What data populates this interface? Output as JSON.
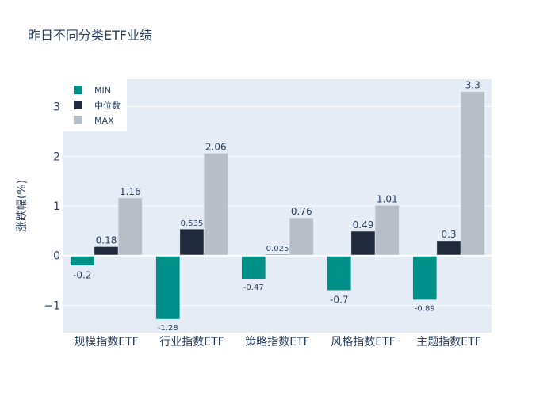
{
  "chart_data": {
    "type": "bar",
    "title": "昨日不同分类ETF业绩",
    "ylabel": "涨跌幅(%)",
    "xlabel": "",
    "categories": [
      "规模指数ETF",
      "行业指数ETF",
      "策略指数ETF",
      "风格指数ETF",
      "主题指数ETF"
    ],
    "series": [
      {
        "name": "MIN",
        "color": "#00908a",
        "values": [
          -0.2,
          -1.28,
          -0.47,
          -0.7,
          -0.89
        ],
        "labels": [
          "-0.2",
          "-1.28",
          "-0.47",
          "-0.7",
          "-0.89"
        ]
      },
      {
        "name": "中位数",
        "color": "#1f2a3e",
        "values": [
          0.18,
          0.535,
          0.025,
          0.49,
          0.3
        ],
        "labels": [
          "0.18",
          "0.535",
          "0.025",
          "0.49",
          "0.3"
        ]
      },
      {
        "name": "MAX",
        "color": "#b7bec7",
        "values": [
          1.16,
          2.06,
          0.76,
          1.01,
          3.3
        ],
        "labels": [
          "1.16",
          "2.06",
          "0.76",
          "1.01",
          "3.3"
        ]
      }
    ],
    "ylim": [
      -1.55,
      3.55
    ],
    "yticks": [
      -1,
      0,
      1,
      2,
      3
    ],
    "ytick_labels": [
      "−1",
      "0",
      "1",
      "2",
      "3"
    ],
    "grid": true,
    "legend_position": "top-left",
    "plot_bg": "#e5ecf6"
  }
}
